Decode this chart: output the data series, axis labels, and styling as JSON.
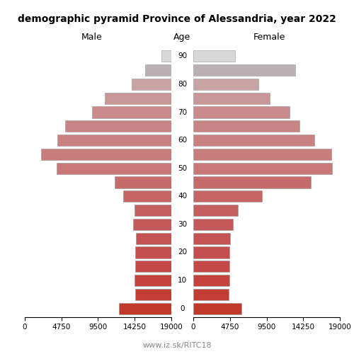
{
  "title": "demographic pyramid Province of Alessandria, year 2022",
  "label_male": "Male",
  "label_female": "Female",
  "label_age": "Age",
  "footer": "www.iz.sk/RITC18",
  "age_groups": [
    0,
    5,
    10,
    15,
    20,
    25,
    30,
    35,
    40,
    45,
    50,
    55,
    60,
    65,
    70,
    75,
    80,
    85,
    90
  ],
  "male_values": [
    6800,
    4700,
    4800,
    4700,
    4700,
    4600,
    5000,
    4800,
    6200,
    7300,
    14900,
    16900,
    14800,
    13800,
    10300,
    8600,
    5100,
    3400,
    1300
  ],
  "female_values": [
    6200,
    4600,
    4700,
    4700,
    4700,
    4800,
    5100,
    5800,
    8900,
    15200,
    18000,
    17900,
    15700,
    13800,
    12500,
    9900,
    8400,
    13200,
    5400
  ],
  "xlim": 19000,
  "xtick_vals": [
    0,
    4750,
    9500,
    14250,
    19000
  ],
  "bar_colors": [
    "#c0392b",
    "#c23e35",
    "#c4433e",
    "#c54848",
    "#c54e4e",
    "#c55353",
    "#c55858",
    "#c55e5e",
    "#c56565",
    "#c56b6b",
    "#c87878",
    "#c87c7c",
    "#c88080",
    "#c88585",
    "#c88a8a",
    "#c89898",
    "#c8a4a4",
    "#b8b0b2",
    "#d8d8d8"
  ],
  "edgecolor": "#999999",
  "bar_height": 0.82,
  "figsize": [
    5.0,
    5.0
  ],
  "dpi": 100,
  "bg_color": "#ffffff",
  "title_fontsize": 10,
  "tick_fontsize": 7.5,
  "label_fontsize": 9,
  "footer_fontsize": 8,
  "footer_color": "#888888"
}
